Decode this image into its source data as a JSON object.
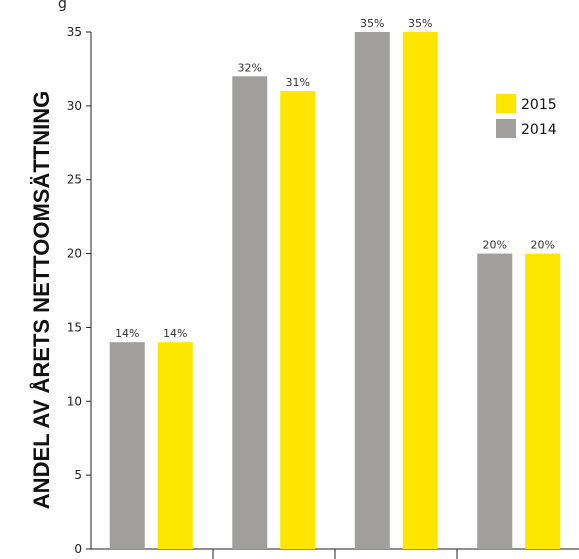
{
  "chart_data": {
    "type": "bar",
    "categories": [
      "",
      "",
      "",
      ""
    ],
    "series": [
      {
        "name": "2014",
        "values": [
          14,
          32,
          35,
          20
        ],
        "color": "#a09f9d",
        "labels": [
          "14%",
          "32%",
          "35%",
          "20%"
        ]
      },
      {
        "name": "2015",
        "values": [
          14,
          31,
          35,
          20
        ],
        "color": "#ffe600",
        "labels": [
          "14%",
          "31%",
          "35%",
          "20%"
        ]
      }
    ],
    "ylabel": "ANDEL AV ÅRETS NETTOOMSÄTTNING",
    "ylim": [
      0,
      35
    ],
    "yticks": [
      "0",
      "5",
      "10",
      "15",
      "20",
      "25",
      "30",
      "35"
    ],
    "legend_position": "right",
    "legend": [
      {
        "name": "2015",
        "color": "#ffe600"
      },
      {
        "name": "2014",
        "color": "#a09f9d"
      }
    ],
    "grid": false,
    "top_cut_text": "g"
  }
}
